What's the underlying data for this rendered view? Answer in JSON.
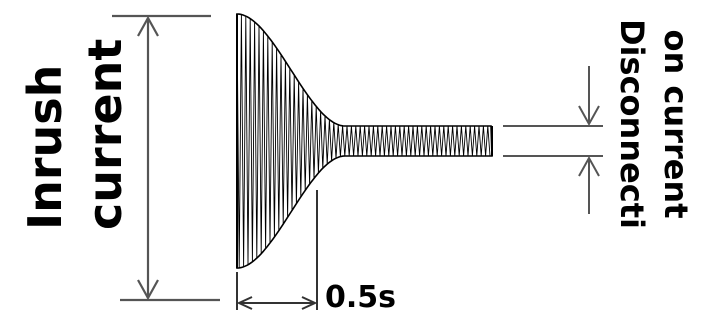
{
  "labels": {
    "inrush_line1": "Inrush",
    "inrush_line2": "current",
    "disconnection_line1": "Disconnecti",
    "disconnection_line2": "on current",
    "time": "0.5s"
  },
  "colors": {
    "stroke": "#000000",
    "dimension_line": "#555555",
    "background": "#ffffff"
  }
}
